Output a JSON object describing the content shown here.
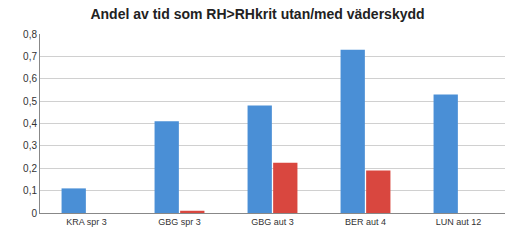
{
  "chart_data": {
    "type": "bar",
    "title": "Andel av tid som RH>RHkrit utan/med väderskydd",
    "categories": [
      "KRA spr 3",
      "GBG spr 3",
      "GBG aut 3",
      "BER aut 4",
      "LUN aut 12"
    ],
    "series": [
      {
        "color": "#4a8fd6",
        "values": [
          0.11,
          0.41,
          0.48,
          0.73,
          0.53
        ]
      },
      {
        "color": "#d9473f",
        "values": [
          0,
          0.01,
          0.225,
          0.19,
          0
        ]
      }
    ],
    "ylim": [
      0,
      0.8
    ],
    "yticks": [
      {
        "value": 0,
        "label": "0"
      },
      {
        "value": 0.1,
        "label": "0,1"
      },
      {
        "value": 0.2,
        "label": "0,2"
      },
      {
        "value": 0.3,
        "label": "0,3"
      },
      {
        "value": 0.4,
        "label": "0,4"
      },
      {
        "value": 0.5,
        "label": "0,5"
      },
      {
        "value": 0.6,
        "label": "0,6"
      },
      {
        "value": 0.7,
        "label": "0,7"
      },
      {
        "value": 0.8,
        "label": "0,8"
      }
    ],
    "grid": true
  }
}
